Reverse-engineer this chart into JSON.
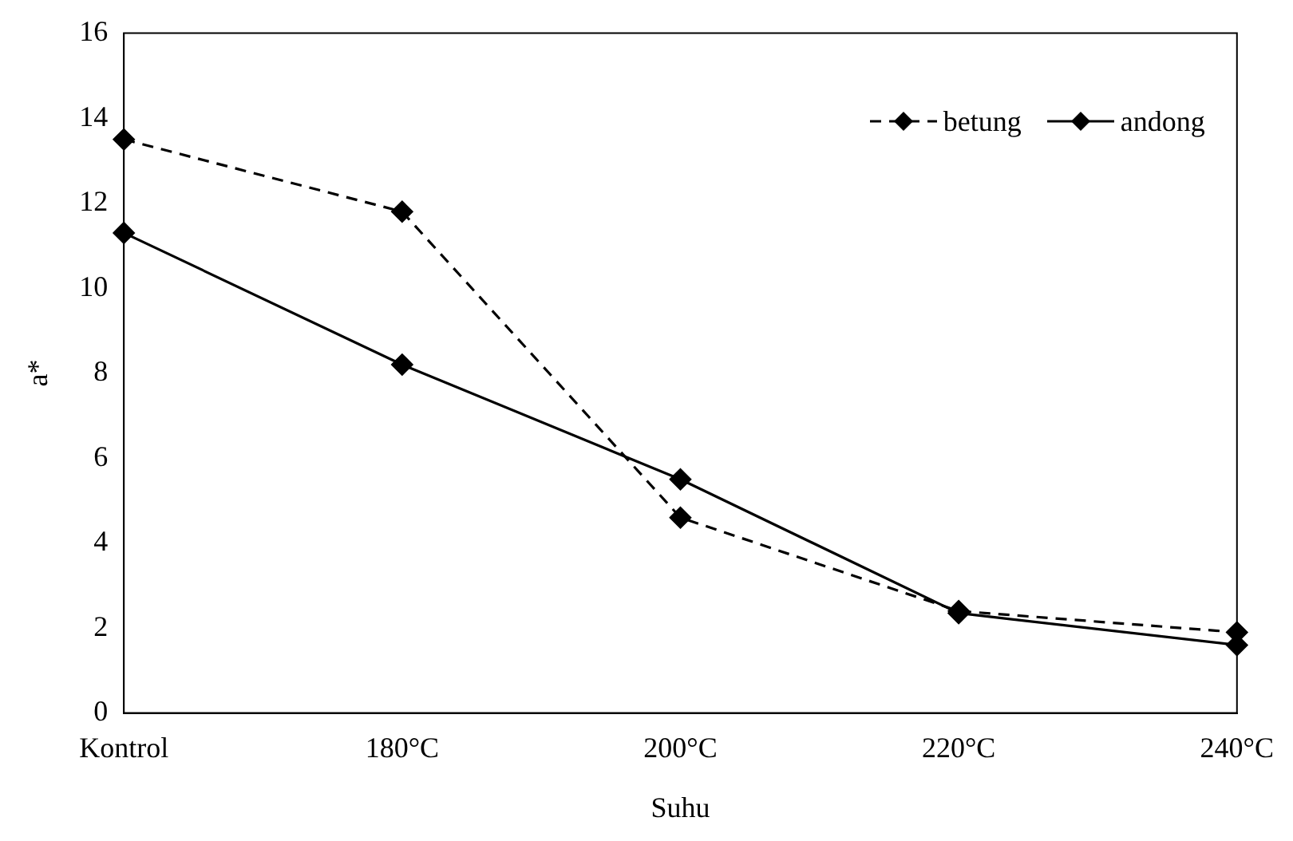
{
  "chart_data": {
    "type": "line",
    "xlabel": "Suhu",
    "ylabel": "a*",
    "categories": [
      "Kontrol",
      "180°C",
      "200°C",
      "220°C",
      "240°C"
    ],
    "series": [
      {
        "name": "betung",
        "color": "#000000",
        "line_style": "dashed",
        "marker": "diamond",
        "values": [
          13.5,
          11.8,
          4.6,
          2.4,
          1.9
        ]
      },
      {
        "name": "andong",
        "color": "#000000",
        "line_style": "solid",
        "marker": "diamond",
        "values": [
          11.3,
          8.2,
          5.5,
          2.35,
          1.6
        ]
      }
    ],
    "ylim": [
      0,
      16
    ],
    "yticks": [
      0,
      2,
      4,
      6,
      8,
      10,
      12,
      14,
      16
    ],
    "grid": false,
    "legend": "top right"
  }
}
